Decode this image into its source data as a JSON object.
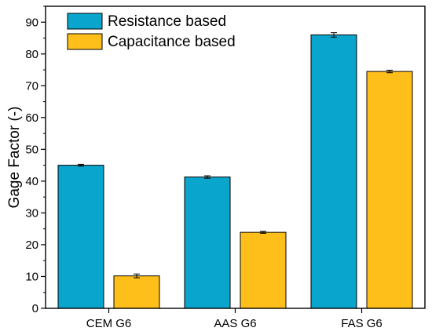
{
  "chart_data": {
    "type": "bar",
    "title": "",
    "xlabel": "",
    "ylabel": "Gage Factor (-)",
    "ylim": [
      0,
      95
    ],
    "yticks": [
      0,
      10,
      20,
      30,
      40,
      50,
      60,
      70,
      80,
      90
    ],
    "categories": [
      "CEM G6",
      "AAS G6",
      "FAS G6"
    ],
    "series": [
      {
        "name": "Resistance based",
        "color": "#0aa5cc",
        "values": [
          45.0,
          41.3,
          86.0
        ],
        "errors": [
          0.3,
          0.4,
          0.7
        ]
      },
      {
        "name": "Capacitance based",
        "color": "#ffbf1a",
        "values": [
          10.2,
          23.9,
          74.5
        ],
        "errors": [
          0.6,
          0.3,
          0.4
        ]
      }
    ],
    "legend": "top-left",
    "grid": false
  }
}
